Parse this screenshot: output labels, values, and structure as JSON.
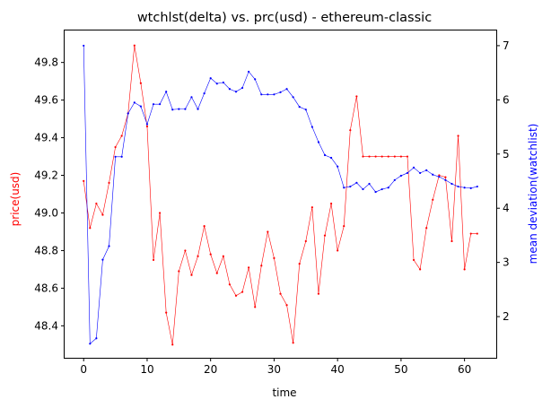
{
  "chart_data": {
    "type": "line",
    "title": "wtchlst(delta) vs. prc(usd) - ethereum-classic",
    "xlabel": "time",
    "xlim": [
      -3,
      65
    ],
    "xticks": [
      0,
      10,
      20,
      30,
      40,
      50,
      60
    ],
    "x": [
      0,
      1,
      2,
      3,
      4,
      5,
      6,
      7,
      8,
      9,
      10,
      11,
      12,
      13,
      14,
      15,
      16,
      17,
      18,
      19,
      20,
      21,
      22,
      23,
      24,
      25,
      26,
      27,
      28,
      29,
      30,
      31,
      32,
      33,
      34,
      35,
      36,
      37,
      38,
      39,
      40,
      41,
      42,
      43,
      44,
      45,
      46,
      47,
      48,
      49,
      50,
      51,
      52,
      53,
      54,
      55,
      56,
      57,
      58,
      59,
      60,
      61,
      62
    ],
    "legend": "none",
    "grid": false,
    "axes": [
      {
        "side": "left",
        "label": "price(usd)",
        "color": "#ff0000",
        "ylim": [
          48.23,
          49.97
        ],
        "ticks": [
          48.4,
          48.6,
          48.8,
          49.0,
          49.2,
          49.4,
          49.6,
          49.8
        ],
        "tick_labels": [
          "48.4",
          "48.6",
          "48.8",
          "49.0",
          "49.2",
          "49.4",
          "49.6",
          "49.8"
        ]
      },
      {
        "side": "right",
        "label": "mean deviation(watchlist)",
        "color": "#0000ff",
        "ylim": [
          1.24,
          7.28
        ],
        "ticks": [
          2,
          3,
          4,
          5,
          6,
          7
        ],
        "tick_labels": [
          "2",
          "3",
          "4",
          "5",
          "6",
          "7"
        ]
      }
    ],
    "series": [
      {
        "axis": "left",
        "color": "#ff0000",
        "values": [
          49.17,
          48.92,
          49.05,
          48.99,
          49.16,
          49.35,
          49.41,
          49.53,
          49.89,
          49.69,
          49.46,
          48.75,
          49.0,
          48.47,
          48.3,
          48.69,
          48.8,
          48.67,
          48.77,
          48.93,
          48.78,
          48.68,
          48.77,
          48.62,
          48.56,
          48.58,
          48.71,
          48.5,
          48.72,
          48.9,
          48.76,
          48.57,
          48.51,
          48.31,
          48.73,
          48.85,
          49.03,
          48.57,
          48.88,
          49.05,
          48.8,
          48.93,
          49.44,
          49.62,
          49.3,
          49.3,
          49.3,
          49.3,
          49.3,
          49.3,
          49.3,
          49.3,
          48.75,
          48.7,
          48.92,
          49.07,
          49.2,
          49.19,
          48.85,
          49.41,
          48.7,
          48.89,
          48.89
        ]
      },
      {
        "axis": "right",
        "color": "#0000ff",
        "values": [
          7.0,
          1.5,
          1.6,
          3.05,
          3.3,
          4.95,
          4.95,
          5.75,
          5.95,
          5.88,
          5.55,
          5.92,
          5.92,
          6.15,
          5.82,
          5.83,
          5.83,
          6.05,
          5.83,
          6.12,
          6.4,
          6.3,
          6.32,
          6.2,
          6.15,
          6.22,
          6.52,
          6.38,
          6.1,
          6.1,
          6.1,
          6.14,
          6.2,
          6.05,
          5.87,
          5.82,
          5.5,
          5.22,
          4.98,
          4.93,
          4.77,
          4.38,
          4.4,
          4.47,
          4.35,
          4.45,
          4.3,
          4.35,
          4.38,
          4.52,
          4.6,
          4.65,
          4.75,
          4.65,
          4.7,
          4.62,
          4.58,
          4.52,
          4.45,
          4.4,
          4.38,
          4.37,
          4.4
        ]
      }
    ]
  }
}
